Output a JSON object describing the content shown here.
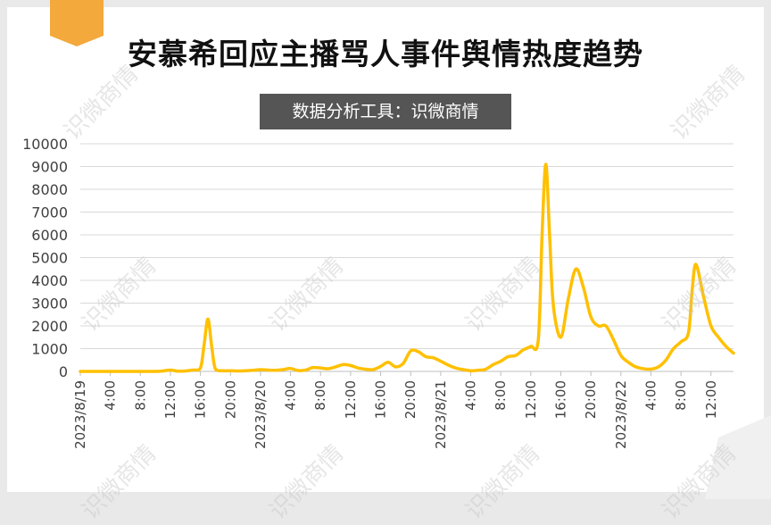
{
  "page": {
    "title": "安慕希回应主播骂人事件舆情热度趋势",
    "subtitle": "数据分析工具：识微商情",
    "watermark": "识微商情"
  },
  "colors": {
    "line": "#FFC000",
    "ribbon": "#F4A93C",
    "subtitle_bg": "#555555",
    "grid": "#D9D9D9",
    "axis_text": "#404040"
  },
  "chart_data": {
    "type": "line",
    "title": "安慕希回应主播骂人事件舆情热度趋势",
    "subtitle": "数据分析工具：识微商情",
    "xlabel": "",
    "ylabel": "",
    "ylim": [
      0,
      10000
    ],
    "y_ticks": [
      0,
      1000,
      2000,
      3000,
      4000,
      5000,
      6000,
      7000,
      8000,
      9000,
      10000
    ],
    "x_tick_labels": [
      "2023/8/19",
      "4:00",
      "8:00",
      "12:00",
      "16:00",
      "20:00",
      "2023/8/20",
      "4:00",
      "8:00",
      "12:00",
      "16:00",
      "20:00",
      "2023/8/21",
      "4:00",
      "8:00",
      "12:00",
      "16:00",
      "20:00",
      "2023/8/22",
      "4:00",
      "8:00",
      "12:00"
    ],
    "x_tick_hours": [
      0,
      4,
      8,
      12,
      16,
      20,
      24,
      28,
      32,
      36,
      40,
      44,
      48,
      52,
      56,
      60,
      64,
      68,
      72,
      76,
      80,
      84
    ],
    "grid": true,
    "legend": "none",
    "series": [
      {
        "points": [
          [
            0,
            0
          ],
          [
            1,
            0
          ],
          [
            2,
            0
          ],
          [
            3,
            0
          ],
          [
            4,
            0
          ],
          [
            5,
            0
          ],
          [
            6,
            0
          ],
          [
            7,
            0
          ],
          [
            8,
            0
          ],
          [
            9,
            0
          ],
          [
            10,
            0
          ],
          [
            11,
            20
          ],
          [
            12,
            60
          ],
          [
            13,
            10
          ],
          [
            14,
            20
          ],
          [
            15,
            60
          ],
          [
            16,
            150
          ],
          [
            16.5,
            1200
          ],
          [
            17,
            2300
          ],
          [
            17.5,
            1100
          ],
          [
            18,
            100
          ],
          [
            19,
            30
          ],
          [
            20,
            30
          ],
          [
            21,
            20
          ],
          [
            22,
            30
          ],
          [
            23,
            50
          ],
          [
            24,
            80
          ],
          [
            25,
            60
          ],
          [
            26,
            50
          ],
          [
            27,
            80
          ],
          [
            28,
            130
          ],
          [
            29,
            40
          ],
          [
            30,
            60
          ],
          [
            31,
            170
          ],
          [
            32,
            150
          ],
          [
            33,
            120
          ],
          [
            34,
            200
          ],
          [
            35,
            300
          ],
          [
            36,
            260
          ],
          [
            37,
            150
          ],
          [
            38,
            100
          ],
          [
            39,
            80
          ],
          [
            40,
            220
          ],
          [
            41,
            400
          ],
          [
            42,
            200
          ],
          [
            43,
            350
          ],
          [
            44,
            900
          ],
          [
            45,
            870
          ],
          [
            46,
            650
          ],
          [
            47,
            600
          ],
          [
            48,
            450
          ],
          [
            49,
            280
          ],
          [
            50,
            150
          ],
          [
            51,
            80
          ],
          [
            52,
            30
          ],
          [
            53,
            50
          ],
          [
            54,
            100
          ],
          [
            55,
            300
          ],
          [
            56,
            450
          ],
          [
            57,
            650
          ],
          [
            58,
            700
          ],
          [
            59,
            950
          ],
          [
            60,
            1100
          ],
          [
            61,
            1400
          ],
          [
            61.5,
            6000
          ],
          [
            62,
            9100
          ],
          [
            62.5,
            6000
          ],
          [
            63,
            2900
          ],
          [
            64,
            1500
          ],
          [
            65,
            3200
          ],
          [
            66,
            4500
          ],
          [
            67,
            3700
          ],
          [
            68,
            2400
          ],
          [
            69,
            2000
          ],
          [
            70,
            2000
          ],
          [
            71,
            1400
          ],
          [
            72,
            700
          ],
          [
            73,
            400
          ],
          [
            74,
            200
          ],
          [
            75,
            120
          ],
          [
            76,
            100
          ],
          [
            77,
            200
          ],
          [
            78,
            500
          ],
          [
            79,
            1000
          ],
          [
            80,
            1300
          ],
          [
            81,
            1700
          ],
          [
            81.5,
            3600
          ],
          [
            82,
            4700
          ],
          [
            83,
            3300
          ],
          [
            84,
            2000
          ],
          [
            85,
            1500
          ],
          [
            86,
            1100
          ],
          [
            87,
            800
          ]
        ]
      }
    ]
  }
}
